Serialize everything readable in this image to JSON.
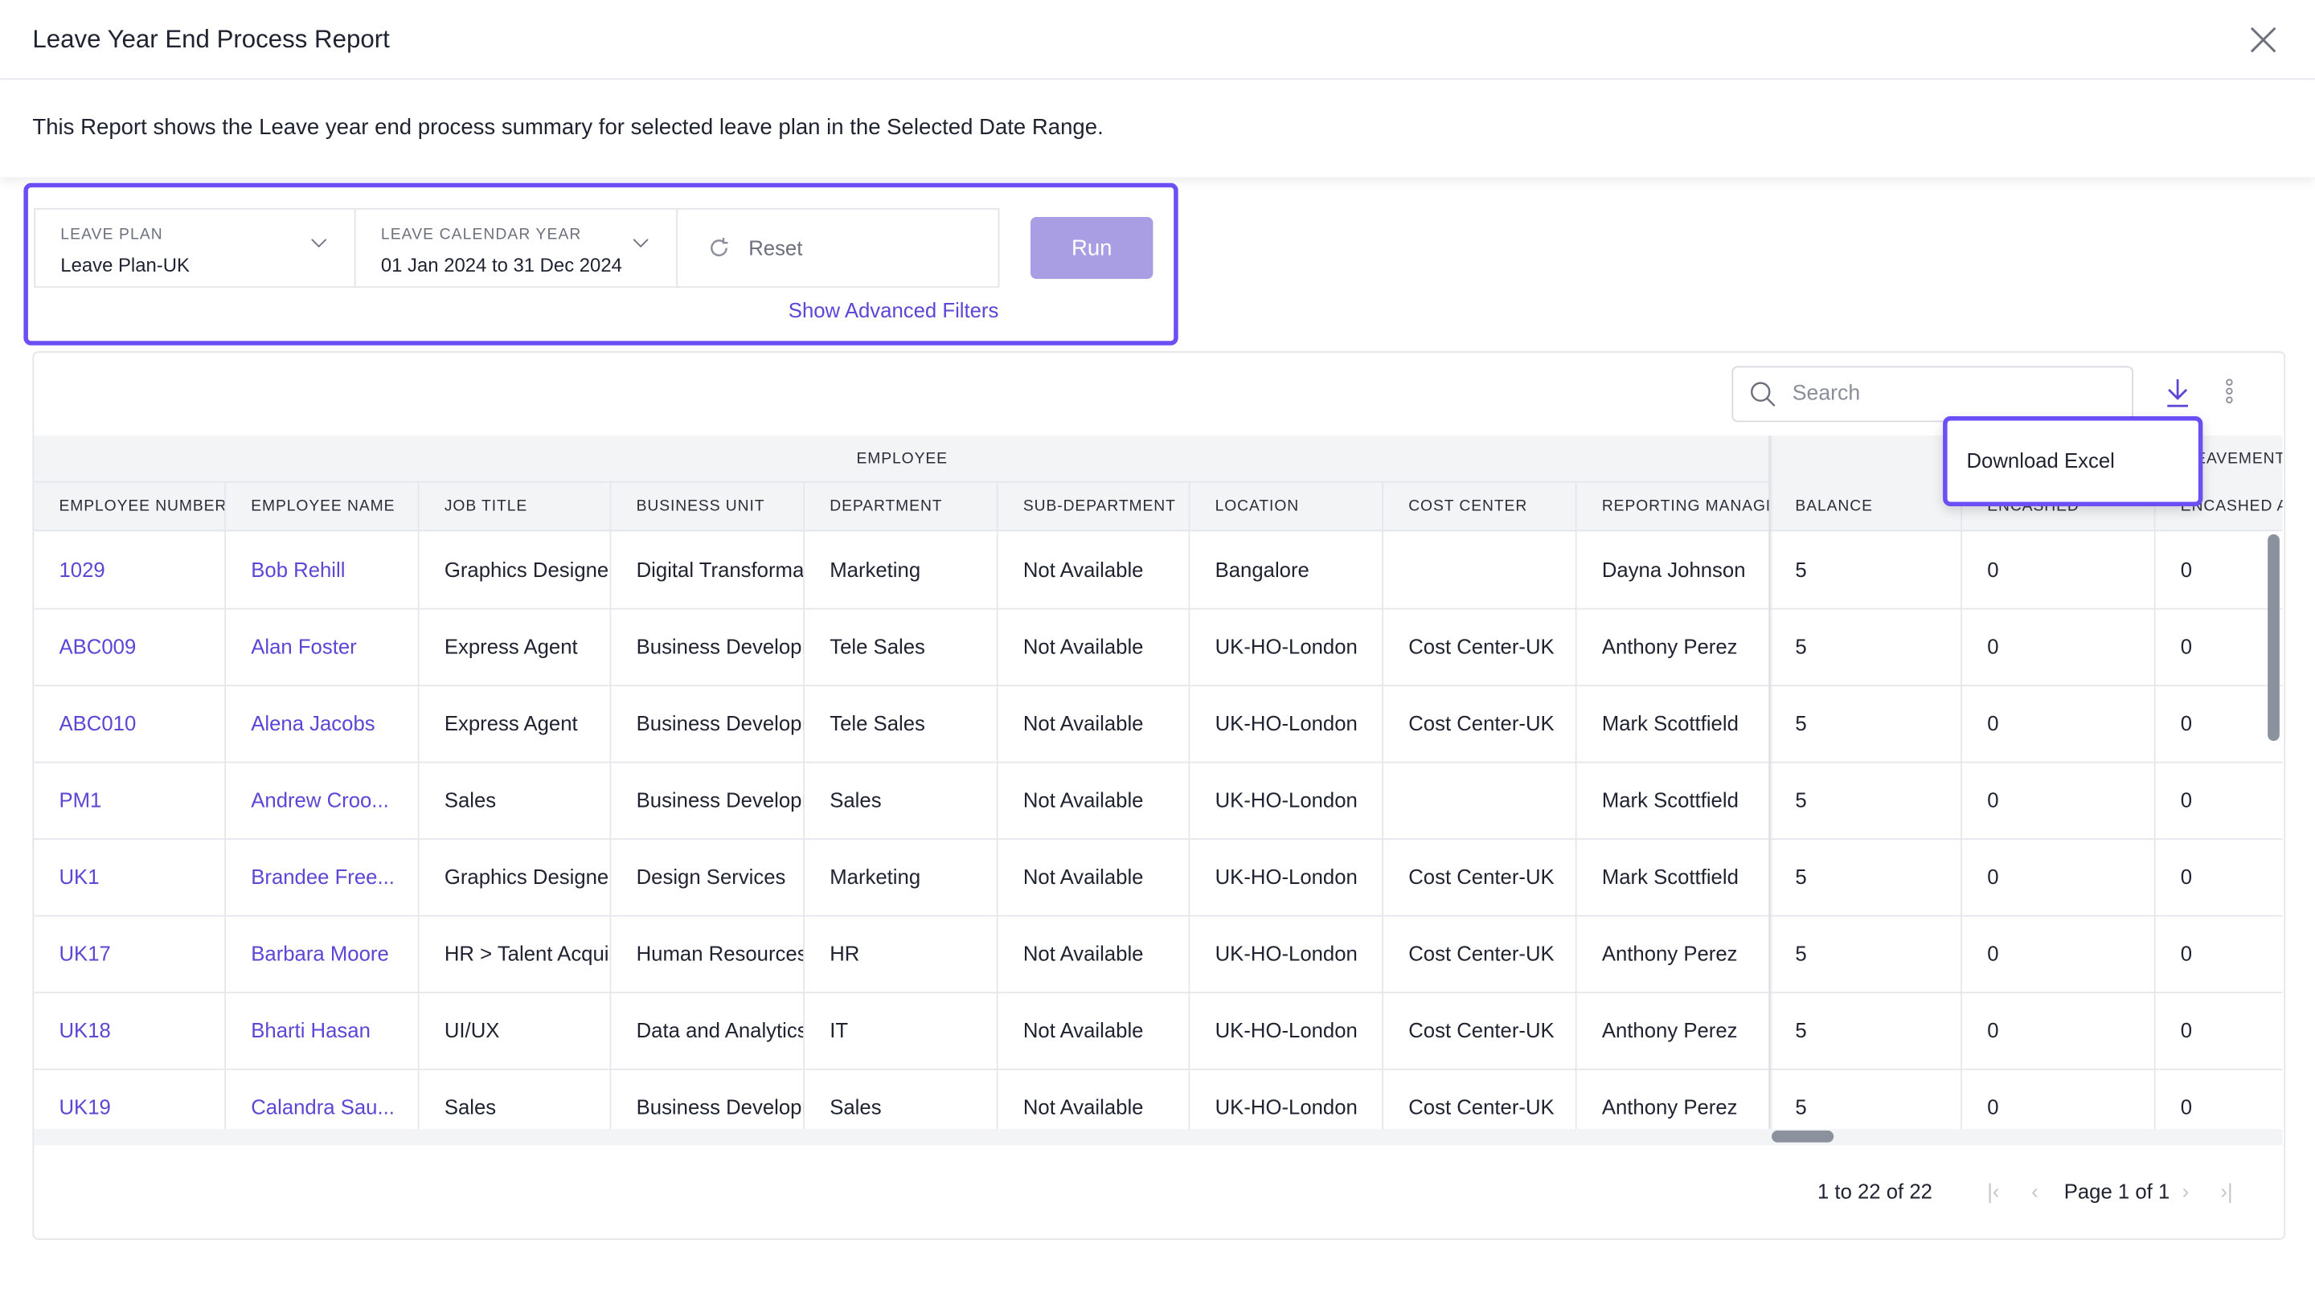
{
  "dialog": {
    "title": "Leave Year End Process Report",
    "close_icon": "close-icon",
    "description": "This Report shows the Leave year end process summary for selected leave plan in the Selected Date Range."
  },
  "filters": {
    "leave_plan": {
      "label": "LEAVE PLAN",
      "value": "Leave Plan-UK"
    },
    "calendar_year": {
      "label": "LEAVE CALENDAR YEAR",
      "value": "01 Jan 2024 to 31 Dec 2024"
    },
    "reset_label": "Reset",
    "run_label": "Run",
    "advanced_label": "Show Advanced Filters"
  },
  "toolbar": {
    "search_placeholder": "Search",
    "download_icon": "download-icon",
    "more_icon": "more-vertical-icon"
  },
  "menu": {
    "items": [
      "Download Excel"
    ]
  },
  "table": {
    "groups": [
      "EMPLOYEE",
      "EAVEMENT"
    ],
    "columns": [
      "EMPLOYEE NUMBER",
      "EMPLOYEE NAME",
      "JOB TITLE",
      "BUSINESS UNIT",
      "DEPARTMENT",
      "SUB-DEPARTMENT",
      "LOCATION",
      "COST CENTER",
      "REPORTING MANAGER",
      "BALANCE",
      "ENCASHED",
      "ENCASHED A"
    ],
    "rows": [
      [
        "1029",
        "Bob Rehill",
        "Graphics Designer",
        "Digital Transformation",
        "Marketing",
        "Not Available",
        "Bangalore",
        "",
        "Dayna Johnson",
        "5",
        "0",
        "0"
      ],
      [
        "ABC009",
        "Alan Foster",
        "Express Agent",
        "Business Development",
        "Tele Sales",
        "Not Available",
        "UK-HO-London",
        "Cost Center-UK",
        "Anthony Perez",
        "5",
        "0",
        "0"
      ],
      [
        "ABC010",
        "Alena Jacobs",
        "Express Agent",
        "Business Development",
        "Tele Sales",
        "Not Available",
        "UK-HO-London",
        "Cost Center-UK",
        "Mark Scottfield",
        "5",
        "0",
        "0"
      ],
      [
        "PM1",
        "Andrew Croo...",
        "Sales",
        "Business Development",
        "Sales",
        "Not Available",
        "UK-HO-London",
        "",
        "Mark Scottfield",
        "5",
        "0",
        "0"
      ],
      [
        "UK1",
        "Brandee Free...",
        "Graphics Designer",
        "Design Services",
        "Marketing",
        "Not Available",
        "UK-HO-London",
        "Cost Center-UK",
        "Mark Scottfield",
        "5",
        "0",
        "0"
      ],
      [
        "UK17",
        "Barbara Moore",
        "HR > Talent Acquisition",
        "Human Resources",
        "HR",
        "Not Available",
        "UK-HO-London",
        "Cost Center-UK",
        "Anthony Perez",
        "5",
        "0",
        "0"
      ],
      [
        "UK18",
        "Bharti Hasan",
        "UI/UX",
        "Data and Analytics",
        "IT",
        "Not Available",
        "UK-HO-London",
        "Cost Center-UK",
        "Anthony Perez",
        "5",
        "0",
        "0"
      ],
      [
        "UK19",
        "Calandra Sau...",
        "Sales",
        "Business Development",
        "Sales",
        "Not Available",
        "UK-HO-London",
        "Cost Center-UK",
        "Anthony Perez",
        "5",
        "0",
        "0"
      ]
    ]
  },
  "pagination": {
    "range": "1 to 22 of 22",
    "page": "Page 1 of 1"
  },
  "colors": {
    "accent": "#6b4ff5",
    "link": "#5b46d6",
    "run_disabled": "#a99ee3"
  }
}
